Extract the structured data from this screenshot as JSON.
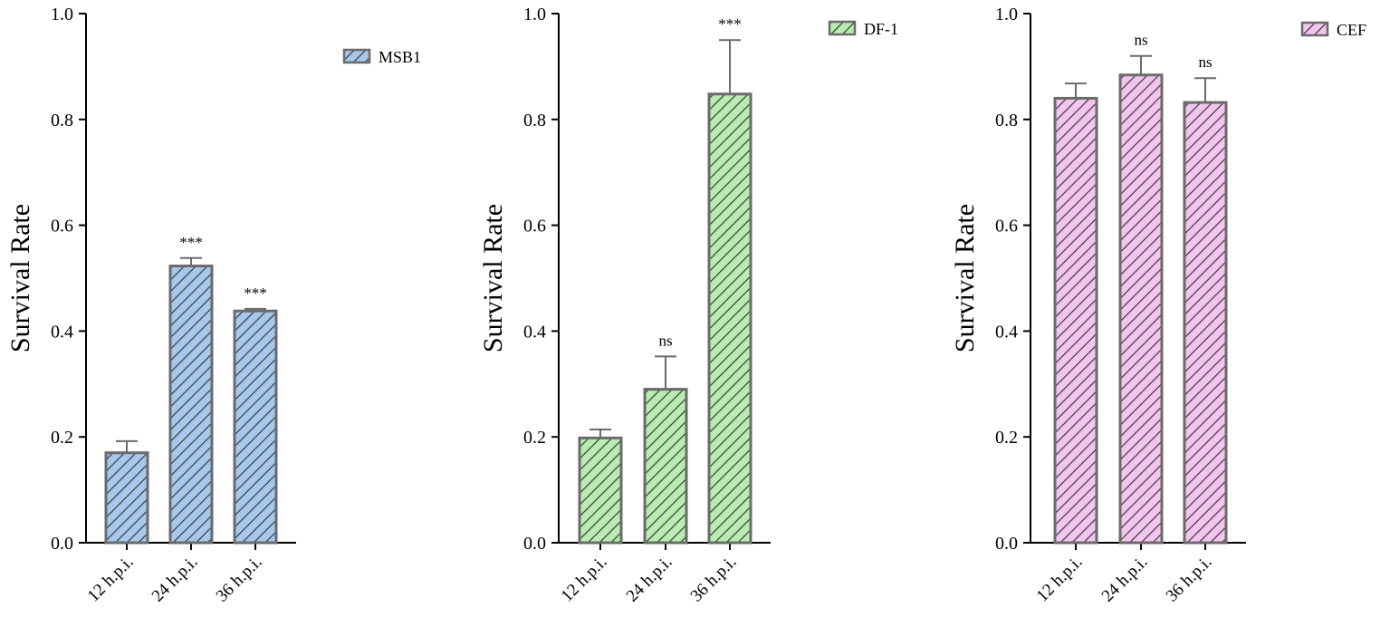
{
  "chart_data": [
    {
      "type": "bar",
      "ylabel": "Survival Rate",
      "ylim": [
        0,
        1.0
      ],
      "yticks": [
        "0.0",
        "0.2",
        "0.4",
        "0.6",
        "0.8",
        "1.0"
      ],
      "categories": [
        "12 h.p.i.",
        "24 h.p.i.",
        "36 h.p.i."
      ],
      "series": [
        {
          "name": "MSB1",
          "values": [
            0.17,
            0.523,
            0.438
          ],
          "errors": [
            0.022,
            0.015,
            0.004
          ]
        }
      ],
      "significance": [
        "",
        "***",
        "***"
      ],
      "fill": "#a6c8ec",
      "stroke": "#6b6b6b",
      "pattern": "diagonal-hatch",
      "legend_position": "top-right"
    },
    {
      "type": "bar",
      "ylabel": "Survival Rate",
      "ylim": [
        0,
        1.0
      ],
      "yticks": [
        "0.0",
        "0.2",
        "0.4",
        "0.6",
        "0.8",
        "1.0"
      ],
      "categories": [
        "12 h.p.i.",
        "24 h.p.i.",
        "36 h.p.i."
      ],
      "series": [
        {
          "name": "DF-1",
          "values": [
            0.198,
            0.29,
            0.848
          ],
          "errors": [
            0.016,
            0.062,
            0.102
          ]
        }
      ],
      "significance": [
        "",
        "ns",
        "***"
      ],
      "fill": "#b8ecb0",
      "stroke": "#6b6b6b",
      "pattern": "diagonal-hatch",
      "legend_position": "top-right"
    },
    {
      "type": "bar",
      "ylabel": "Survival Rate",
      "ylim": [
        0,
        1.0
      ],
      "yticks": [
        "0.0",
        "0.2",
        "0.4",
        "0.6",
        "0.8",
        "1.0"
      ],
      "categories": [
        "12 h.p.i.",
        "24 h.p.i.",
        "36 h.p.i."
      ],
      "series": [
        {
          "name": "CEF",
          "values": [
            0.84,
            0.884,
            0.832
          ],
          "errors": [
            0.028,
            0.036,
            0.046
          ]
        }
      ],
      "significance": [
        "",
        "ns",
        "ns"
      ],
      "fill": "#f2c4ee",
      "stroke": "#6b6b6b",
      "pattern": "diagonal-hatch",
      "legend_position": "top-right"
    }
  ]
}
